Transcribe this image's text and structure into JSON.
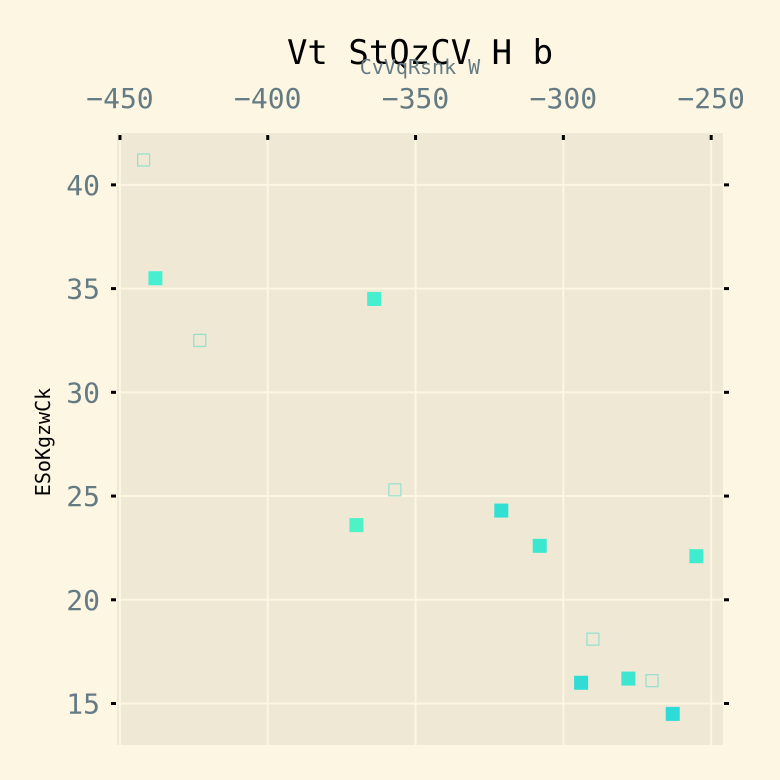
{
  "chart_data": {
    "type": "scatter",
    "title": "Vt StQzCV H  b",
    "xlabel": "CvVqRsnk W",
    "ylabel": "ESoKgzwCk",
    "xlim": [
      -451,
      -246
    ],
    "ylim": [
      13,
      42.5
    ],
    "x_ticks": [
      -450,
      -400,
      -350,
      -300,
      -250
    ],
    "y_ticks": [
      15,
      20,
      25,
      30,
      35,
      40
    ],
    "x_tick_labels": [
      "−450",
      "−400",
      "−350",
      "−300",
      "−250"
    ],
    "y_tick_labels": [
      "15",
      "20",
      "25",
      "30",
      "35",
      "40"
    ],
    "x_axis_position": "top",
    "grid": true,
    "colors": {
      "background": "#fdf6e3",
      "plot_background": "#eee8d5",
      "grid": "#fdf6e3",
      "tick_label": "#657b83",
      "marker_outline": "#93e0cf"
    },
    "series": [
      {
        "marker": "filled-square",
        "points": [
          {
            "x": -438,
            "y": 35.5,
            "color": "#46efcf"
          },
          {
            "x": -364,
            "y": 34.5,
            "color": "#46efcf"
          },
          {
            "x": -370,
            "y": 23.6,
            "color": "#4df2c6"
          },
          {
            "x": -321,
            "y": 24.3,
            "color": "#30e0d2"
          },
          {
            "x": -308,
            "y": 22.6,
            "color": "#39e8cf"
          },
          {
            "x": -255,
            "y": 22.1,
            "color": "#40eccf"
          },
          {
            "x": -294,
            "y": 16.0,
            "color": "#2fdcd6"
          },
          {
            "x": -278,
            "y": 16.2,
            "color": "#3ce6d0"
          },
          {
            "x": -263,
            "y": 14.5,
            "color": "#2edbd6"
          }
        ]
      },
      {
        "marker": "open-square",
        "points": [
          {
            "x": -442,
            "y": 41.2
          },
          {
            "x": -423,
            "y": 32.5
          },
          {
            "x": -357,
            "y": 25.3
          },
          {
            "x": -290,
            "y": 18.1
          },
          {
            "x": -270,
            "y": 16.1
          }
        ]
      }
    ]
  }
}
